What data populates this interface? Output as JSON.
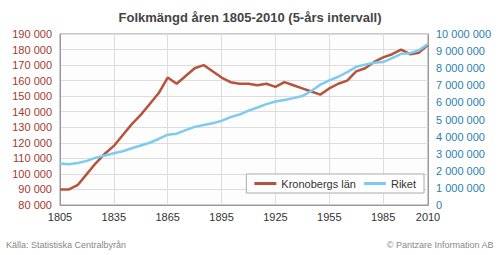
{
  "chart_data": {
    "type": "line",
    "title": "Folkmängd åren 1805-2010 (5-års intervall)",
    "x": [
      1805,
      1810,
      1815,
      1820,
      1825,
      1830,
      1835,
      1840,
      1845,
      1850,
      1855,
      1860,
      1865,
      1870,
      1875,
      1880,
      1885,
      1890,
      1895,
      1900,
      1905,
      1910,
      1915,
      1920,
      1925,
      1930,
      1935,
      1940,
      1945,
      1950,
      1955,
      1960,
      1965,
      1970,
      1975,
      1980,
      1985,
      1990,
      1995,
      2000,
      2005,
      2010
    ],
    "series": [
      {
        "name": "Kronobergs län",
        "color": "#b5533c",
        "values": [
          90000,
          90000,
          93000,
          100000,
          107000,
          113000,
          118000,
          125000,
          132000,
          138000,
          145000,
          152000,
          162000,
          158000,
          163000,
          168000,
          170000,
          166000,
          162000,
          159000,
          158000,
          158000,
          157000,
          158000,
          156000,
          159000,
          157000,
          155000,
          153000,
          151000,
          155000,
          158000,
          160000,
          166000,
          168000,
          172000,
          175000,
          177000,
          180000,
          177000,
          178000,
          183000
        ]
      },
      {
        "name": "Riket",
        "color": "#7ecbf0",
        "axis": "y2",
        "values": [
          2420000,
          2380000,
          2460000,
          2580000,
          2770000,
          2890000,
          3030000,
          3140000,
          3320000,
          3480000,
          3640000,
          3860000,
          4110000,
          4170000,
          4380000,
          4570000,
          4680000,
          4780000,
          4920000,
          5140000,
          5290000,
          5520000,
          5700000,
          5900000,
          6050000,
          6140000,
          6250000,
          6370000,
          6670000,
          7040000,
          7290000,
          7500000,
          7770000,
          8080000,
          8210000,
          8320000,
          8360000,
          8590000,
          8840000,
          8880000,
          9050000,
          9420000
        ]
      }
    ],
    "xlim": [
      1805,
      2010
    ],
    "xticks": [
      1805,
      1835,
      1865,
      1895,
      1925,
      1955,
      1985,
      2010
    ],
    "ylim": [
      80000,
      190000
    ],
    "yticks": [
      {
        "value": 80000,
        "label": "80 000"
      },
      {
        "value": 90000,
        "label": "90 000"
      },
      {
        "value": 100000,
        "label": "100 000"
      },
      {
        "value": 110000,
        "label": "110 000"
      },
      {
        "value": 120000,
        "label": "120 000"
      },
      {
        "value": 130000,
        "label": "130 000"
      },
      {
        "value": 140000,
        "label": "140 000"
      },
      {
        "value": 150000,
        "label": "150 000"
      },
      {
        "value": 160000,
        "label": "160 000"
      },
      {
        "value": 170000,
        "label": "170 000"
      },
      {
        "value": 180000,
        "label": "180 000"
      },
      {
        "value": 190000,
        "label": "190 000"
      }
    ],
    "y2lim": [
      0,
      10000000
    ],
    "y2ticks": [
      0,
      {
        "value": 1000000,
        "label": "1 000 000"
      },
      {
        "value": 2000000,
        "label": "2 000 000"
      },
      {
        "value": 3000000,
        "label": "3 000 000"
      },
      {
        "value": 4000000,
        "label": "4 000 000"
      },
      {
        "value": 5000000,
        "label": "5 000 000"
      },
      {
        "value": 6000000,
        "label": "6 000 000"
      },
      {
        "value": 7000000,
        "label": "7 000 000"
      },
      {
        "value": 8000000,
        "label": "8 000 000"
      },
      {
        "value": 9000000,
        "label": "9 000 000"
      },
      {
        "value": 10000000,
        "label": "10 000 000"
      }
    ],
    "grid": true,
    "legend": "lower right",
    "annotations": [
      "Källa: Statistiska Centralbyrån",
      "© Pantzare Information AB"
    ]
  }
}
